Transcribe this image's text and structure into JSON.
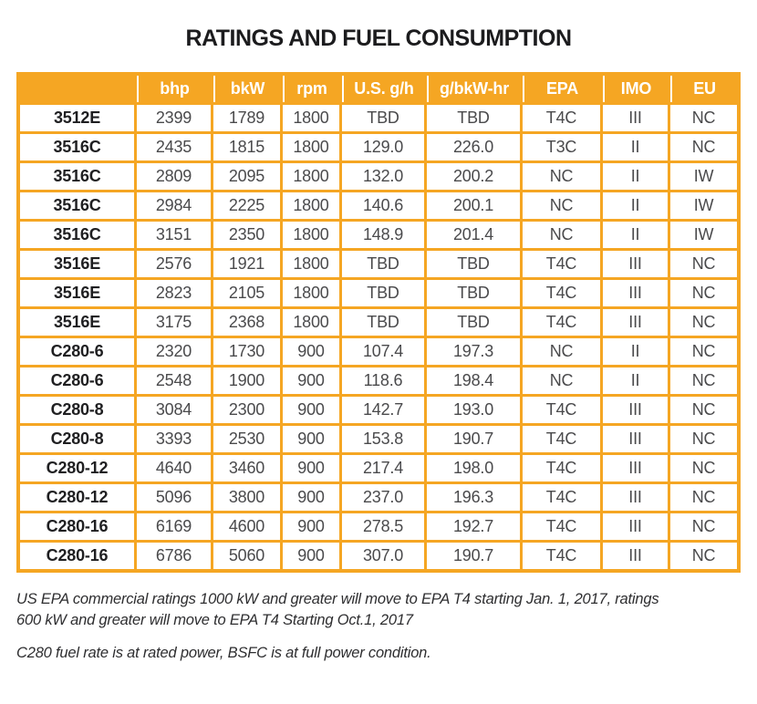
{
  "title": "RATINGS AND FUEL CONSUMPTION",
  "colors": {
    "accent": "#F5A623",
    "header_text": "#FFFFFF",
    "model_text": "#1F1F21",
    "data_text": "#4A4A4C"
  },
  "table": {
    "columns": [
      "",
      "bhp",
      "bkW",
      "rpm",
      "U.S. g/h",
      "g/bkW-hr",
      "EPA",
      "IMO",
      "EU"
    ],
    "rows": [
      [
        "3512E",
        "2399",
        "1789",
        "1800",
        "TBD",
        "TBD",
        "T4C",
        "III",
        "NC"
      ],
      [
        "3516C",
        "2435",
        "1815",
        "1800",
        "129.0",
        "226.0",
        "T3C",
        "II",
        "NC"
      ],
      [
        "3516C",
        "2809",
        "2095",
        "1800",
        "132.0",
        "200.2",
        "NC",
        "II",
        "IW"
      ],
      [
        "3516C",
        "2984",
        "2225",
        "1800",
        "140.6",
        "200.1",
        "NC",
        "II",
        "IW"
      ],
      [
        "3516C",
        "3151",
        "2350",
        "1800",
        "148.9",
        "201.4",
        "NC",
        "II",
        "IW"
      ],
      [
        "3516E",
        "2576",
        "1921",
        "1800",
        "TBD",
        "TBD",
        "T4C",
        "III",
        "NC"
      ],
      [
        "3516E",
        "2823",
        "2105",
        "1800",
        "TBD",
        "TBD",
        "T4C",
        "III",
        "NC"
      ],
      [
        "3516E",
        "3175",
        "2368",
        "1800",
        "TBD",
        "TBD",
        "T4C",
        "III",
        "NC"
      ],
      [
        "C280-6",
        "2320",
        "1730",
        "900",
        "107.4",
        "197.3",
        "NC",
        "II",
        "NC"
      ],
      [
        "C280-6",
        "2548",
        "1900",
        "900",
        "118.6",
        "198.4",
        "NC",
        "II",
        "NC"
      ],
      [
        "C280-8",
        "3084",
        "2300",
        "900",
        "142.7",
        "193.0",
        "T4C",
        "III",
        "NC"
      ],
      [
        "C280-8",
        "3393",
        "2530",
        "900",
        "153.8",
        "190.7",
        "T4C",
        "III",
        "NC"
      ],
      [
        "C280-12",
        "4640",
        "3460",
        "900",
        "217.4",
        "198.0",
        "T4C",
        "III",
        "NC"
      ],
      [
        "C280-12",
        "5096",
        "3800",
        "900",
        "237.0",
        "196.3",
        "T4C",
        "III",
        "NC"
      ],
      [
        "C280-16",
        "6169",
        "4600",
        "900",
        "278.5",
        "192.7",
        "T4C",
        "III",
        "NC"
      ],
      [
        "C280-16",
        "6786",
        "5060",
        "900",
        "307.0",
        "190.7",
        "T4C",
        "III",
        "NC"
      ]
    ]
  },
  "footnotes": [
    "US EPA commercial ratings 1000 kW and greater will move to EPA T4 starting Jan. 1, 2017, ratings\n600 kW and greater will move to EPA T4 Starting Oct.1, 2017",
    "C280 fuel rate is at rated power, BSFC is at full power condition."
  ]
}
